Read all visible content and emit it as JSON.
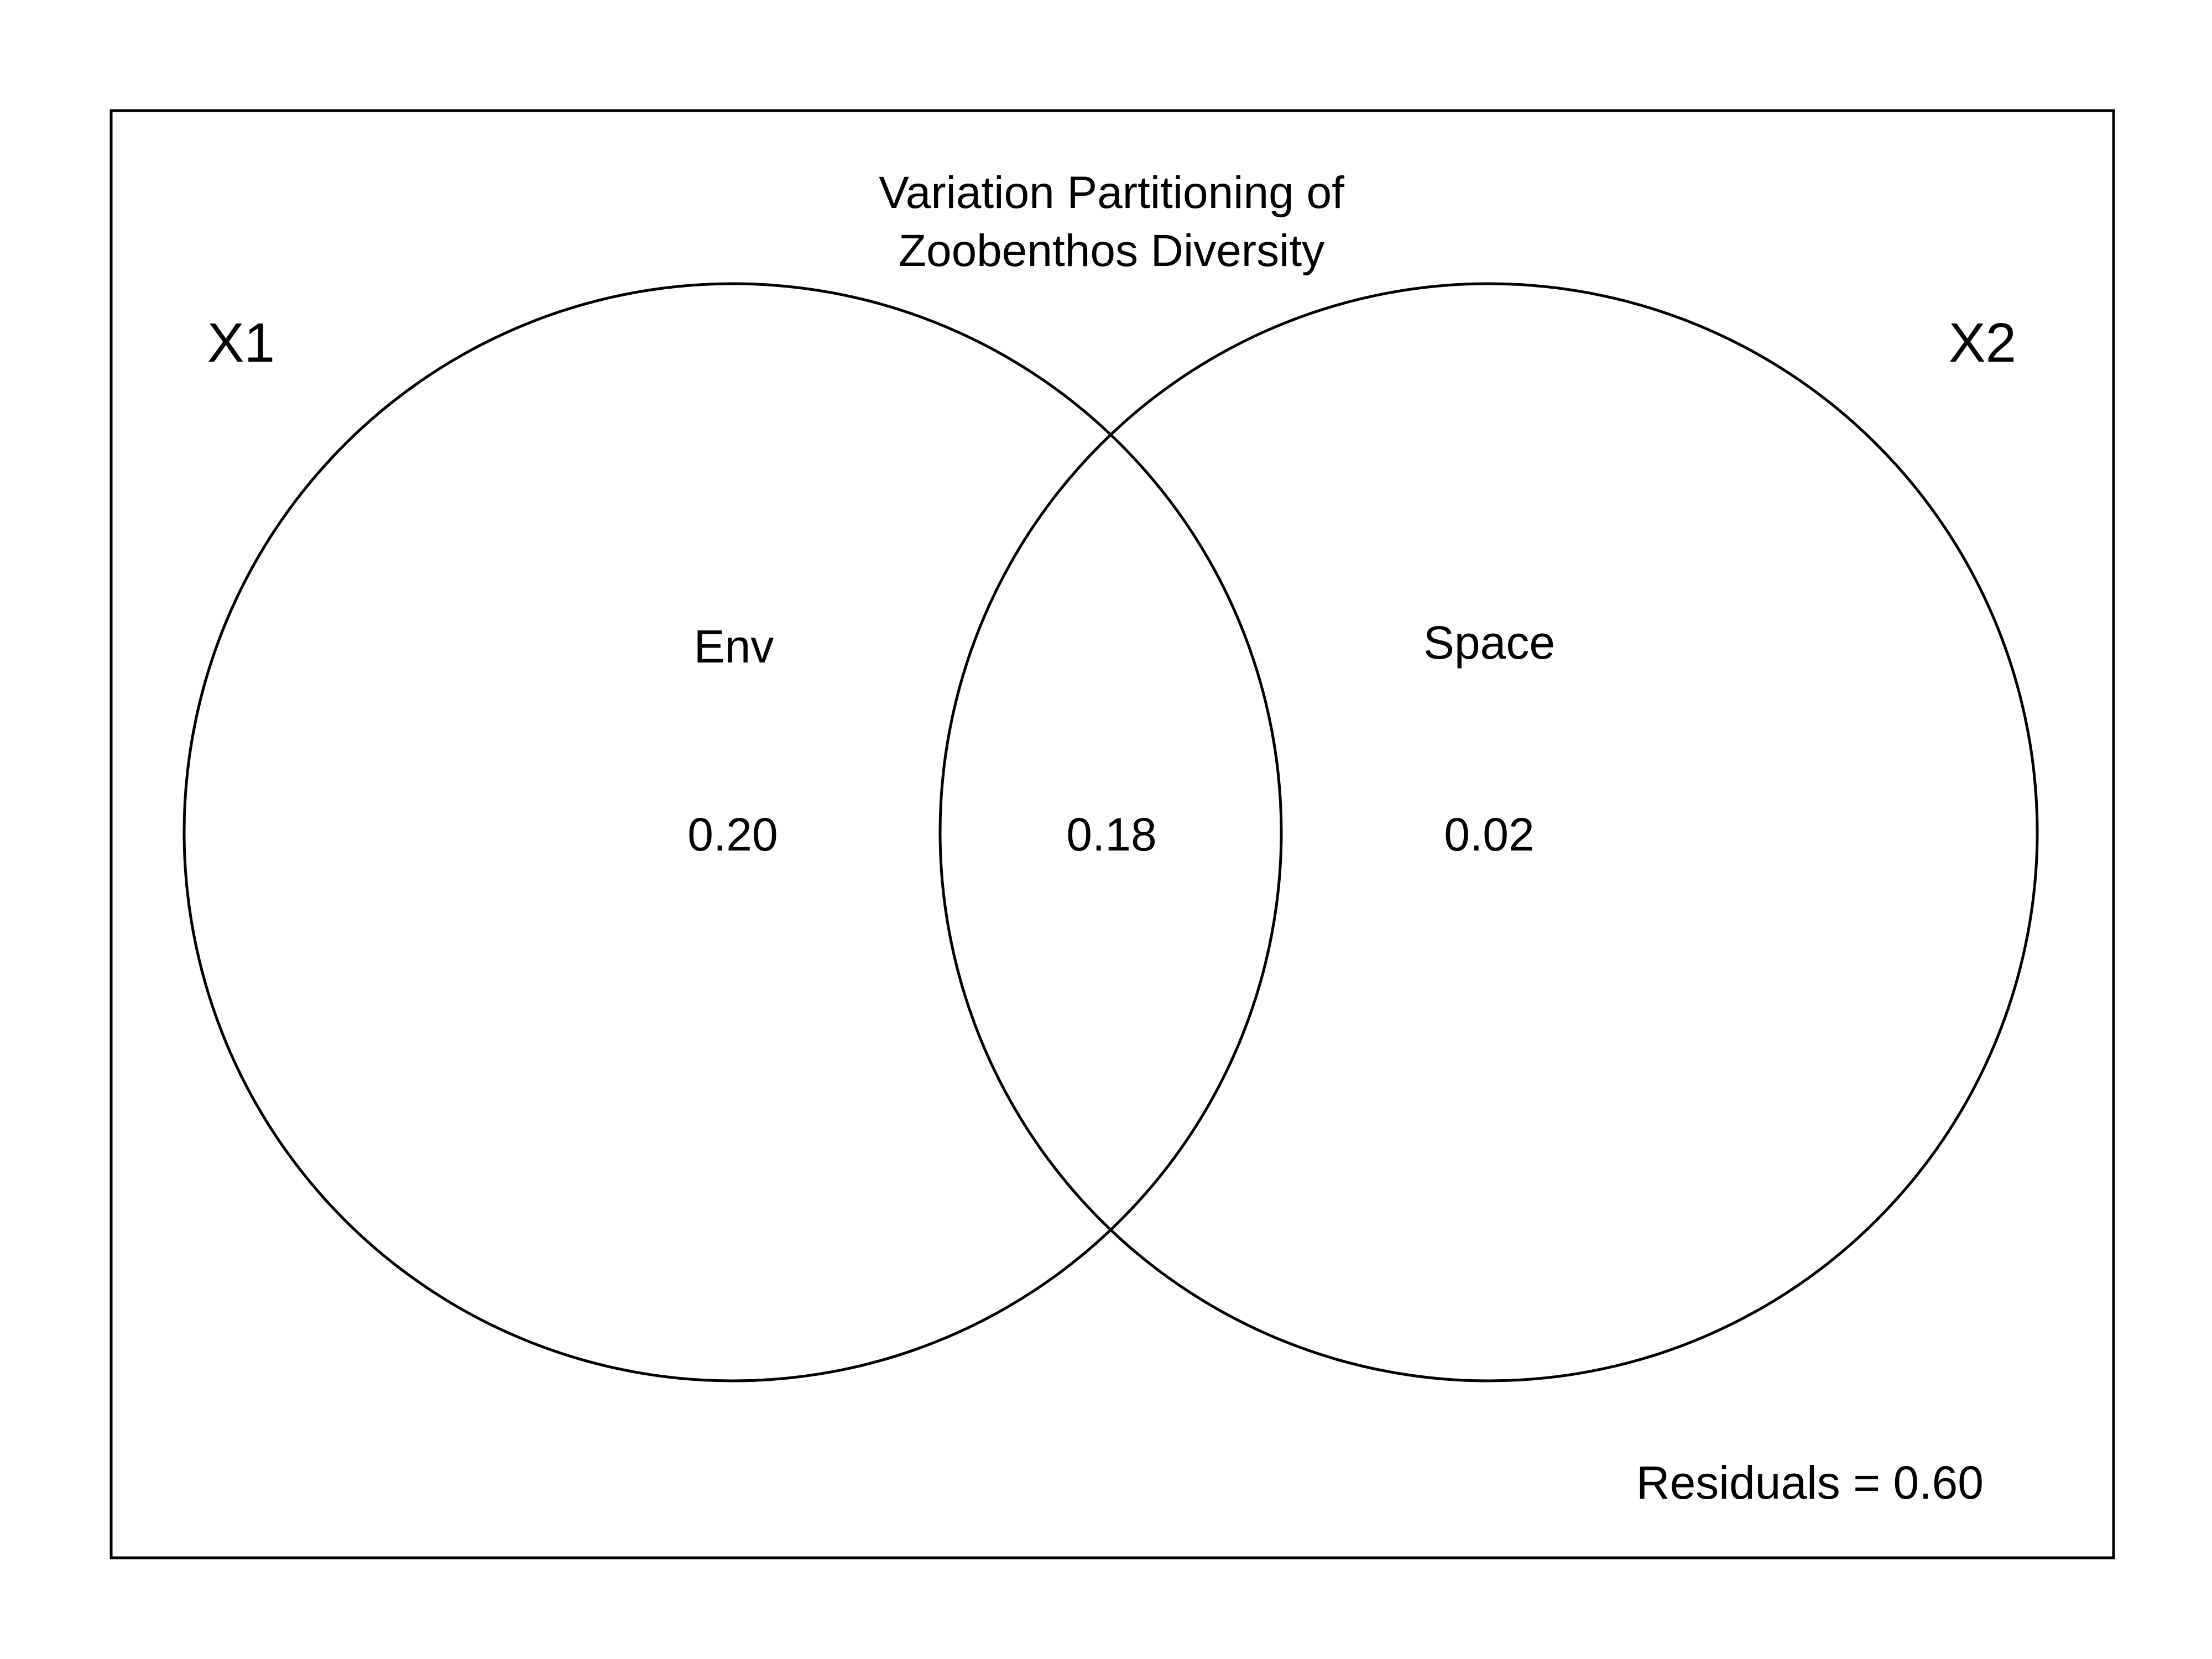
{
  "diagram": {
    "type": "venn",
    "title_lines": [
      "Variation Partitioning of",
      "Zoobenthos Diversity"
    ],
    "sets": [
      {
        "id": "x1",
        "label": "X1",
        "region_name": "Env"
      },
      {
        "id": "x2",
        "label": "X2",
        "region_name": "Space"
      }
    ],
    "fractions": {
      "x1_only": "0.20",
      "shared": "0.18",
      "x2_only": "0.02"
    },
    "residuals_text": "Residuals = 0.60",
    "colors": {
      "line": "#000000",
      "background": "#ffffff"
    }
  }
}
